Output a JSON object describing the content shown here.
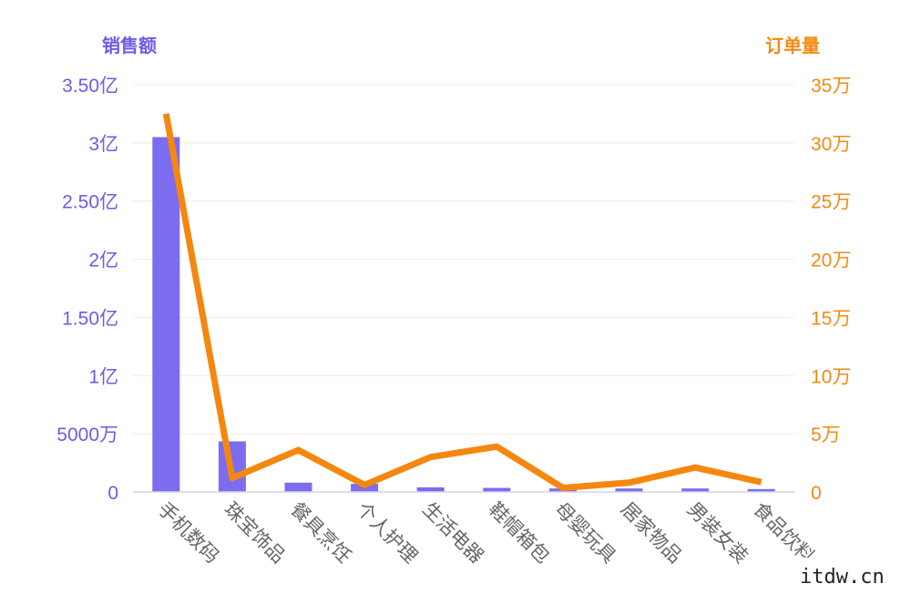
{
  "chart_data": {
    "type": "bar",
    "combo": "bar+line",
    "categories": [
      "手机数码",
      "珠宝饰品",
      "餐具烹饪",
      "个人护理",
      "生活电器",
      "鞋帽箱包",
      "母婴玩具",
      "居家物品",
      "男装女装",
      "食品饮料"
    ],
    "series": [
      {
        "name": "销售额",
        "type": "bar",
        "axis": "left",
        "values": [
          305000000,
          43500000,
          8000000,
          7000000,
          4000000,
          3500000,
          3000000,
          3000000,
          3000000,
          2500000
        ]
      },
      {
        "name": "订单量",
        "type": "line",
        "axis": "right",
        "values": [
          325000,
          12000,
          36000,
          6000,
          30000,
          39000,
          3500,
          8000,
          21000,
          8500
        ]
      }
    ],
    "y_left": {
      "label": "销售额",
      "ylim": [
        0,
        350000000
      ],
      "ticks": [
        0,
        50000000,
        100000000,
        150000000,
        200000000,
        250000000,
        300000000,
        350000000
      ],
      "tick_labels": [
        "0",
        "5000万",
        "1亿",
        "1.50亿",
        "2亿",
        "2.50亿",
        "3亿",
        "3.50亿"
      ]
    },
    "y_right": {
      "label": "订单量",
      "ylim": [
        0,
        350000
      ],
      "ticks": [
        0,
        50000,
        100000,
        150000,
        200000,
        250000,
        300000,
        350000
      ],
      "tick_labels": [
        "0",
        "5万",
        "10万",
        "15万",
        "20万",
        "25万",
        "30万",
        "35万"
      ]
    },
    "grid": true,
    "colors": {
      "bar": "#7b6cf0",
      "line": "#f5870f",
      "left_axis_text": "#6b5ce7",
      "right_axis_text": "#f28a12",
      "grid": "#f4efdd",
      "category_text": "#666666"
    }
  },
  "watermark": "itdw.cn"
}
